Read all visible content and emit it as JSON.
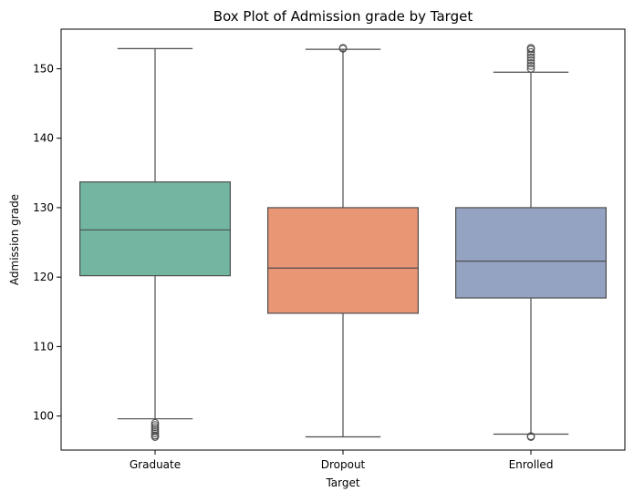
{
  "chart_data": {
    "type": "box",
    "title": "Box Plot of Admission grade by Target",
    "xlabel": "Target",
    "ylabel": "Admission grade",
    "ylim": [
      95.1,
      155.7
    ],
    "yticks": [
      100,
      110,
      120,
      130,
      140,
      150
    ],
    "grid": false,
    "categories": [
      "Graduate",
      "Dropout",
      "Enrolled"
    ],
    "boxes": [
      {
        "category": "Graduate",
        "color": "#72b6a1",
        "whisker_low": 99.6,
        "q1": 120.2,
        "median": 126.8,
        "q3": 133.7,
        "whisker_high": 152.9,
        "outliers_low": [
          97.0,
          97.2,
          97.5,
          97.8,
          98.1,
          98.4,
          98.7,
          99.0
        ],
        "outliers_high": []
      },
      {
        "category": "Dropout",
        "color": "#e99675",
        "whisker_low": 97.0,
        "q1": 114.8,
        "median": 121.3,
        "q3": 130.0,
        "whisker_high": 152.8,
        "outliers_low": [],
        "outliers_high": [
          152.9,
          153.0
        ]
      },
      {
        "category": "Enrolled",
        "color": "#95a3c3",
        "whisker_low": 97.4,
        "q1": 117.0,
        "median": 122.3,
        "q3": 130.0,
        "whisker_high": 149.5,
        "outliers_low": [
          97.0,
          97.1
        ],
        "outliers_high": [
          150.0,
          150.4,
          150.8,
          151.2,
          151.6,
          152.0,
          152.4,
          152.8,
          153.0
        ]
      }
    ]
  },
  "colors": {
    "line": "#4d4d4d",
    "axis": "#000000"
  }
}
